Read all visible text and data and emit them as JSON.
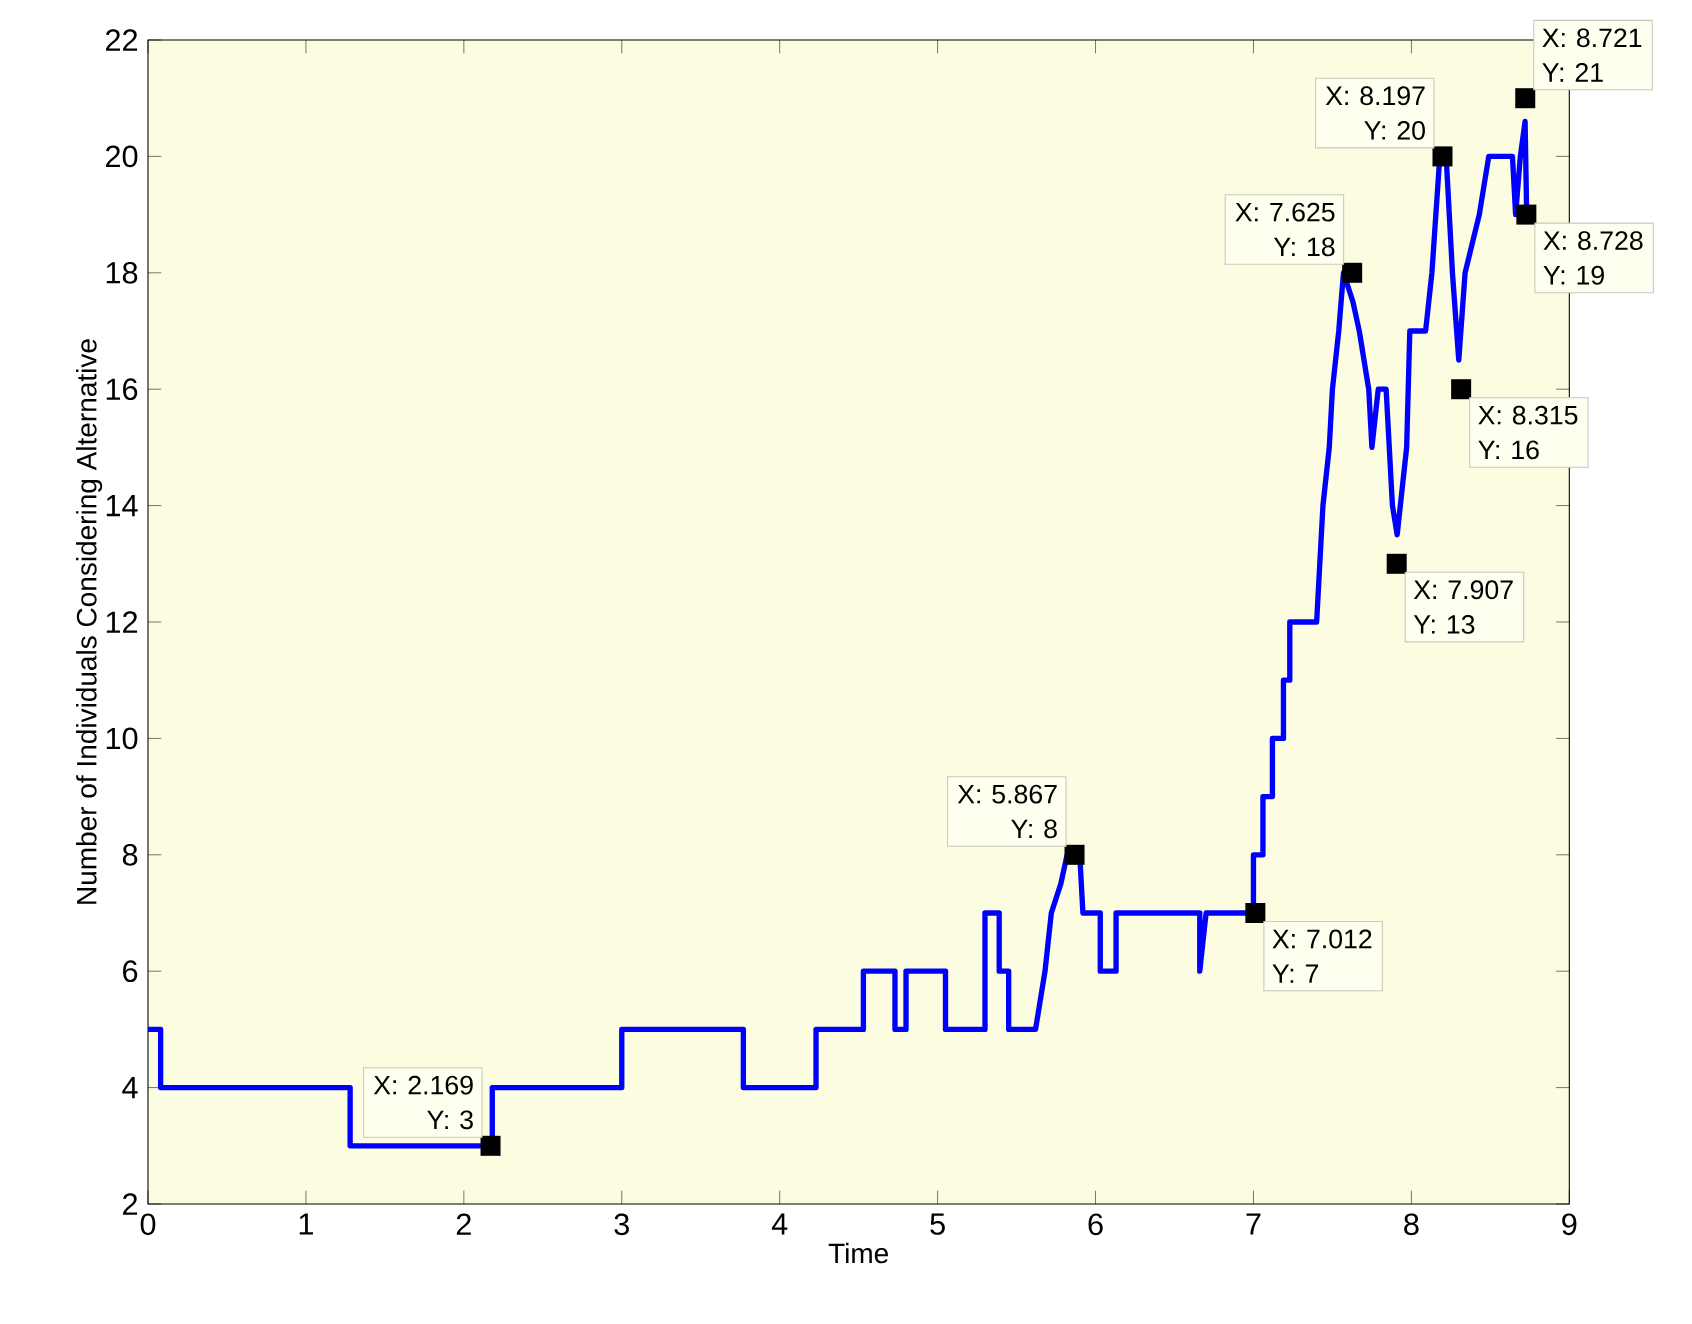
{
  "chart_data": {
    "type": "line",
    "xlabel": "Time",
    "ylabel": "Number of Individuals Considering Alternative",
    "xlim": [
      0,
      9
    ],
    "ylim": [
      2,
      22
    ],
    "xticks": [
      0,
      1,
      2,
      3,
      4,
      5,
      6,
      7,
      8,
      9
    ],
    "yticks": [
      2,
      4,
      6,
      8,
      10,
      12,
      14,
      16,
      18,
      20,
      22
    ],
    "grid": false,
    "marker": "none",
    "line_style": "solid",
    "series": [
      {
        "color": "#0000ff",
        "x": [
          0,
          0.08,
          0.08,
          1.28,
          1.28,
          2.18,
          2.18,
          3.0,
          3.0,
          3.77,
          3.77,
          4.23,
          4.23,
          4.53,
          4.53,
          4.73,
          4.73,
          4.8,
          4.8,
          5.05,
          5.05,
          5.3,
          5.3,
          5.39,
          5.39,
          5.45,
          5.45,
          5.62,
          5.68,
          5.72,
          5.78,
          5.82,
          5.9,
          5.92,
          6.03,
          6.03,
          6.13,
          6.13,
          6.66,
          6.66,
          6.7,
          7.0,
          7.0,
          7.06,
          7.06,
          7.12,
          7.12,
          7.19,
          7.19,
          7.23,
          7.23,
          7.4,
          7.42,
          7.44,
          7.48,
          7.5,
          7.54,
          7.57,
          7.63,
          7.67,
          7.73,
          7.75,
          7.79,
          7.84,
          7.88,
          7.91,
          7.97,
          7.99,
          8.09,
          8.13,
          8.18,
          8.22,
          8.26,
          8.3,
          8.34,
          8.43,
          8.49,
          8.64,
          8.66,
          8.69,
          8.72,
          8.73
        ],
        "values": [
          5,
          5,
          4,
          4,
          3,
          3,
          4,
          4,
          5,
          5,
          4,
          4,
          5,
          5,
          6,
          6,
          5,
          5,
          6,
          6,
          5,
          5,
          7,
          7,
          6,
          6,
          5,
          5,
          6,
          7,
          7.5,
          8,
          8,
          7,
          7,
          6,
          6,
          7,
          7,
          6,
          7,
          7,
          8,
          8,
          9,
          9,
          10,
          10,
          11,
          11,
          12,
          12,
          13,
          14,
          15,
          16,
          17,
          18,
          17.5,
          17,
          16,
          15,
          16,
          16,
          14,
          13.5,
          15,
          17,
          17,
          18,
          20,
          20,
          18,
          16.5,
          18,
          19,
          20,
          20,
          19,
          20,
          20.6,
          19
        ]
      }
    ],
    "annotations": [
      {
        "text": "X: 2.169 Y: 3",
        "x": 2.169,
        "y": 3
      },
      {
        "text": "X: 5.867 Y: 8",
        "x": 5.867,
        "y": 8
      },
      {
        "text": "X: 7.012 Y: 7",
        "x": 7.012,
        "y": 7
      },
      {
        "text": "X: 7.625 Y: 18",
        "x": 7.625,
        "y": 18
      },
      {
        "text": "X: 7.907 Y: 13",
        "x": 7.907,
        "y": 13
      },
      {
        "text": "X: 8.197 Y: 20",
        "x": 8.197,
        "y": 20
      },
      {
        "text": "X: 8.315 Y: 16",
        "x": 8.315,
        "y": 16
      },
      {
        "text": "X: 8.721 Y: 21",
        "x": 8.721,
        "y": 21
      },
      {
        "text": "X: 8.728 Y: 19",
        "x": 8.728,
        "y": 19
      }
    ]
  }
}
